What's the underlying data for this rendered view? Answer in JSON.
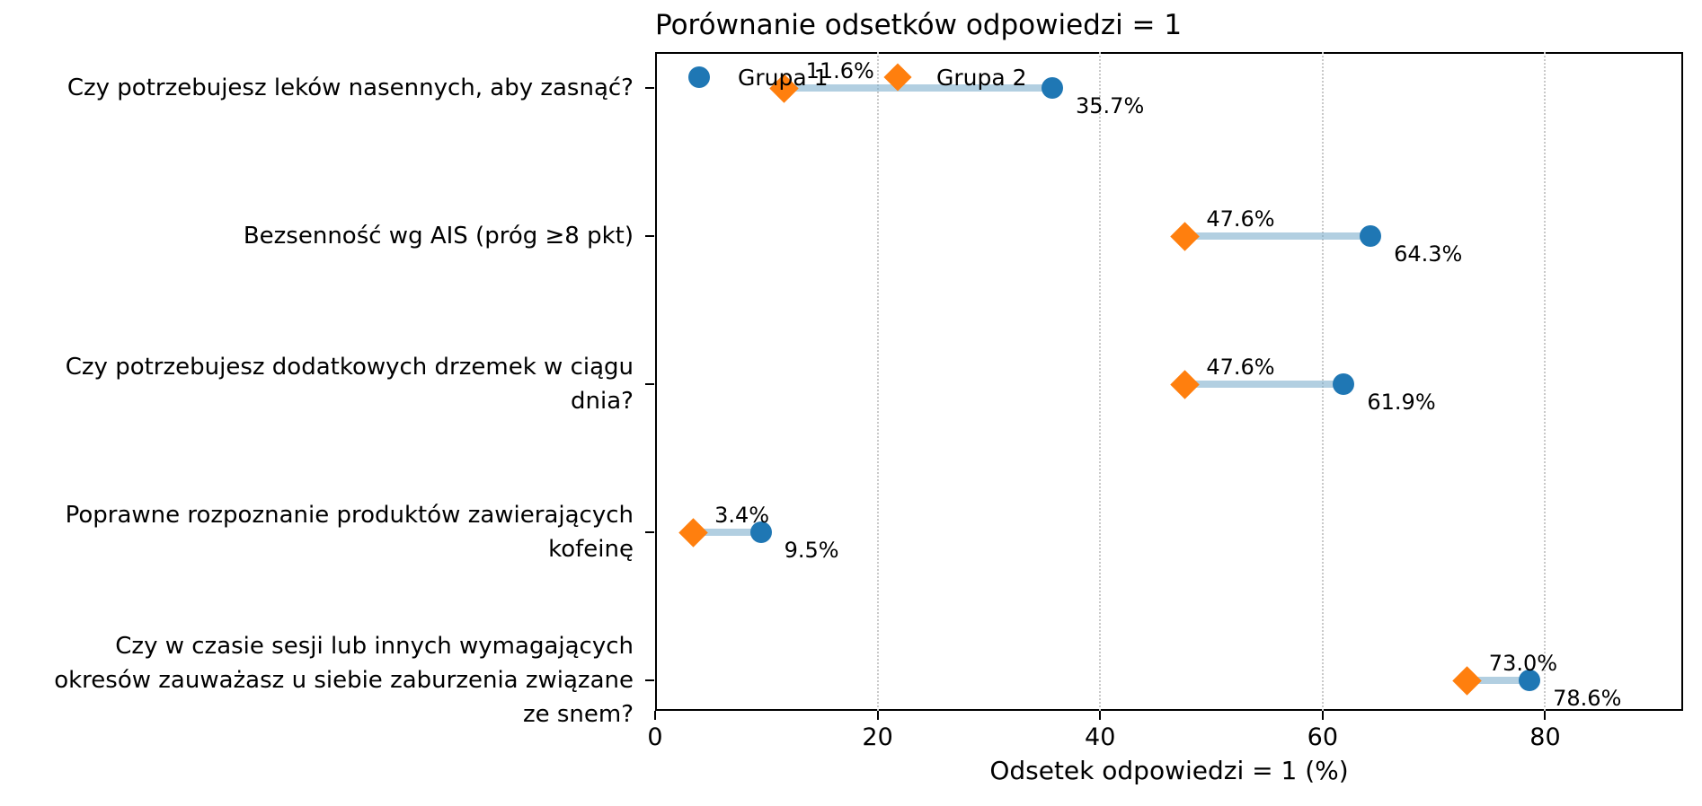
{
  "colors": {
    "group1": "#1f77b4",
    "group2": "#ff7f0e",
    "connector": "rgba(115,167,201,0.55)",
    "grid": "#c9c9c9",
    "text": "#000000"
  },
  "chart_data": {
    "type": "scatter",
    "subtype": "dumbbell-comparison",
    "title": "Porównanie odsetków odpowiedzi = 1",
    "xlabel": "Odsetek odpowiedzi = 1 (%)",
    "ylabel": "",
    "xlim": [
      0,
      92.4
    ],
    "xticks": [
      0,
      20,
      40,
      60,
      80
    ],
    "grid": "vertical dotted gridlines at x ticks",
    "legend_position": "upper left, horizontal, no frame",
    "categories": [
      "Czy potrzebujesz leków nasennych, aby zasnąć?",
      "Bezsenność wg AIS (próg ≥8 pkt)",
      "Czy potrzebujesz dodatkowych drzemek w ciągu dnia?",
      "Poprawne rozpoznanie produktów zawierających kofeinę",
      "Czy w czasie sesji lub innych wymagających okresów zauważasz u siebie zaburzenia związane ze snem?"
    ],
    "category_lines": [
      [
        "Czy potrzebujesz leków nasennych, aby zasnąć?"
      ],
      [
        "Bezsenność wg AIS (próg ≥8 pkt)"
      ],
      [
        "Czy potrzebujesz dodatkowych drzemek w ciągu",
        "dnia?"
      ],
      [
        "Poprawne rozpoznanie produktów zawierających",
        "kofeinę"
      ],
      [
        "Czy w czasie sesji lub innych wymagających",
        "okresów zauważasz u siebie zaburzenia związane",
        "ze snem?"
      ]
    ],
    "series": [
      {
        "name": "Grupa 1",
        "marker": "circle",
        "color": "#1f77b4",
        "values": [
          35.7,
          64.3,
          61.9,
          9.5,
          78.6
        ],
        "labels": [
          "35.7%",
          "64.3%",
          "61.9%",
          "9.5%",
          "78.6%"
        ]
      },
      {
        "name": "Grupa 2",
        "marker": "diamond",
        "color": "#ff7f0e",
        "values": [
          11.6,
          47.6,
          47.6,
          3.4,
          73.0
        ],
        "labels": [
          "11.6%",
          "47.6%",
          "47.6%",
          "3.4%",
          "73.0%"
        ]
      }
    ]
  }
}
